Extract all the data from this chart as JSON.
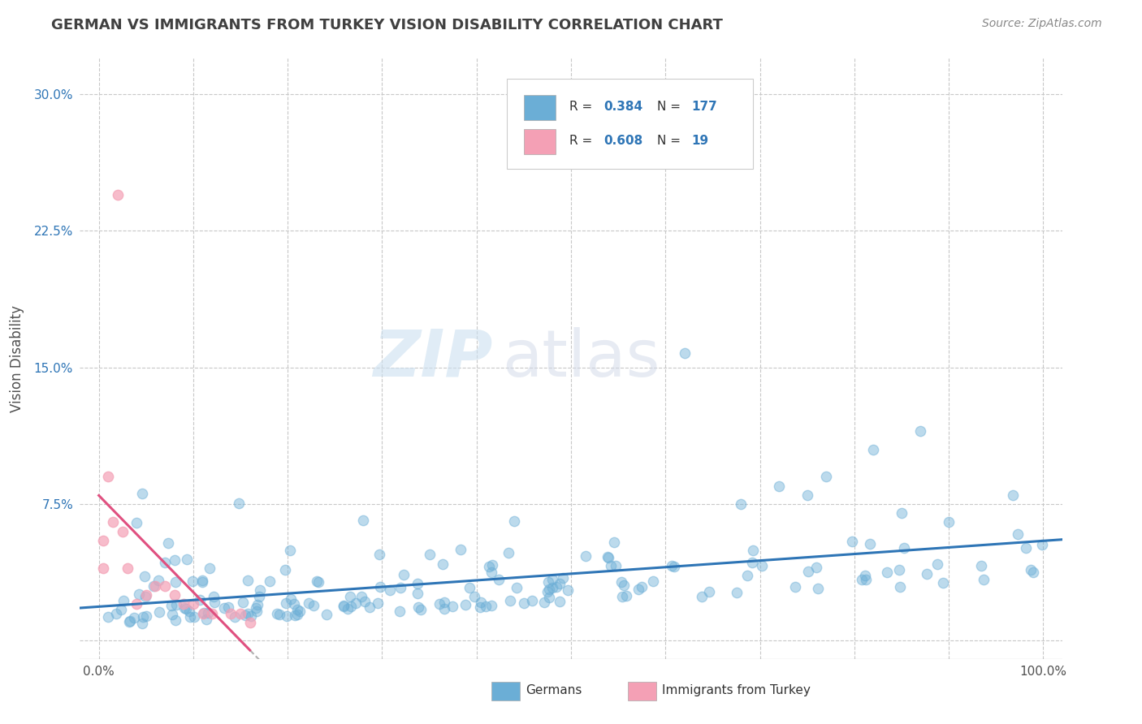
{
  "title": "GERMAN VS IMMIGRANTS FROM TURKEY VISION DISABILITY CORRELATION CHART",
  "source": "Source: ZipAtlas.com",
  "ylabel": "Vision Disability",
  "xlim": [
    -0.02,
    1.02
  ],
  "ylim": [
    -0.01,
    0.32
  ],
  "yticks": [
    0.0,
    0.075,
    0.15,
    0.225,
    0.3
  ],
  "ytick_labels": [
    "",
    "7.5%",
    "15.0%",
    "22.5%",
    "30.0%"
  ],
  "xticks": [
    0.0,
    0.1,
    0.2,
    0.3,
    0.4,
    0.5,
    0.6,
    0.7,
    0.8,
    0.9,
    1.0
  ],
  "german_color": "#6baed6",
  "turkish_color": "#f4a0b5",
  "turkish_line_color": "#e05080",
  "german_line_color": "#2e75b6",
  "german_R": 0.384,
  "german_N": 177,
  "turkish_R": 0.608,
  "turkish_N": 19,
  "watermark_zip": "ZIP",
  "watermark_atlas": "atlas",
  "legend_labels": [
    "Germans",
    "Immigrants from Turkey"
  ],
  "background_color": "#ffffff",
  "grid_color": "#c8c8c8",
  "title_color": "#404040",
  "blue_text": "#2e75b6",
  "turkish_scatter_x": [
    0.005,
    0.005,
    0.01,
    0.015,
    0.02,
    0.025,
    0.03,
    0.04,
    0.05,
    0.06,
    0.07,
    0.08,
    0.09,
    0.1,
    0.11,
    0.12,
    0.14,
    0.15,
    0.16
  ],
  "turkish_scatter_y": [
    0.055,
    0.04,
    0.09,
    0.065,
    0.245,
    0.06,
    0.04,
    0.02,
    0.025,
    0.03,
    0.03,
    0.025,
    0.02,
    0.02,
    0.015,
    0.015,
    0.015,
    0.015,
    0.01
  ]
}
